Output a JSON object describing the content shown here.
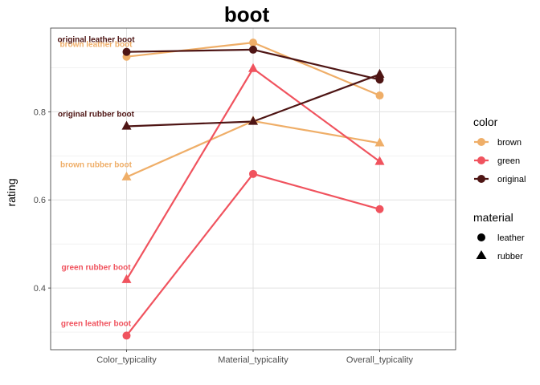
{
  "chart_data": {
    "type": "line",
    "title": "boot",
    "xlabel": "",
    "ylabel": "rating",
    "categories": [
      "Color_typicality",
      "Material_typicality",
      "Overall_typicality"
    ],
    "ylim": [
      0.26,
      0.99
    ],
    "yticks": [
      0.4,
      0.6,
      0.8
    ],
    "ytick_labels": [
      "0.4",
      "0.6",
      "0.8"
    ],
    "grid": true,
    "colors": {
      "brown": "#EFAE68",
      "green": "#F0535E",
      "original": "#4E1514"
    },
    "series": [
      {
        "color": "brown",
        "material": "leather",
        "values": [
          0.925,
          0.957,
          0.837
        ],
        "label": "brown leather boot"
      },
      {
        "color": "brown",
        "material": "rubber",
        "values": [
          0.652,
          0.779,
          0.729
        ],
        "label": "brown rubber boot"
      },
      {
        "color": "green",
        "material": "leather",
        "values": [
          0.292,
          0.659,
          0.579
        ],
        "label": "green leather boot"
      },
      {
        "color": "green",
        "material": "rubber",
        "values": [
          0.419,
          0.898,
          0.687
        ],
        "label": "green rubber boot"
      },
      {
        "color": "original",
        "material": "leather",
        "values": [
          0.936,
          0.941,
          0.873
        ],
        "label": "original leather boot"
      },
      {
        "color": "original",
        "material": "rubber",
        "values": [
          0.767,
          0.778,
          0.885
        ],
        "label": "original rubber boot"
      }
    ],
    "legend": {
      "placement": "right",
      "color_title": "color",
      "color_items": [
        "brown",
        "green",
        "original"
      ],
      "material_title": "material",
      "material_items": [
        {
          "label": "leather",
          "shape": "circle"
        },
        {
          "label": "rubber",
          "shape": "triangle"
        }
      ]
    }
  }
}
